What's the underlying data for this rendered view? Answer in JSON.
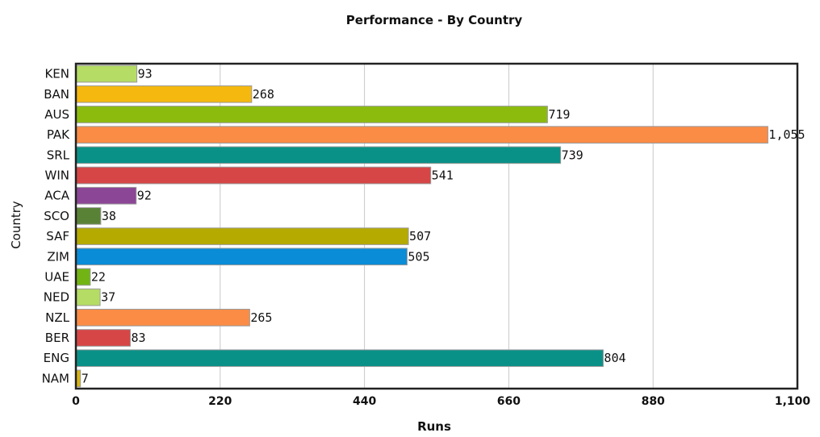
{
  "chart_data": {
    "type": "bar",
    "orientation": "horizontal",
    "title": "Performance - By Country",
    "xlabel": "Runs",
    "ylabel": "Country",
    "xlim": [
      0,
      1100
    ],
    "x_ticks": [
      0,
      220,
      440,
      660,
      880,
      1100
    ],
    "x_tick_labels": [
      "0",
      "220",
      "440",
      "660",
      "880",
      "1,100"
    ],
    "grid": true,
    "legend": "none",
    "categories": [
      "KEN",
      "BAN",
      "AUS",
      "PAK",
      "SRL",
      "WIN",
      "ACA",
      "SCO",
      "SAF",
      "ZIM",
      "UAE",
      "NED",
      "NZL",
      "BER",
      "ENG",
      "NAM"
    ],
    "values": [
      93,
      268,
      719,
      1055,
      739,
      541,
      92,
      38,
      507,
      505,
      22,
      37,
      265,
      83,
      804,
      7
    ],
    "value_labels": [
      "93",
      "268",
      "719",
      "1,055",
      "739",
      "541",
      "92",
      "38",
      "507",
      "505",
      "22",
      "37",
      "265",
      "83",
      "804",
      "7"
    ],
    "colors": [
      "#b5dc64",
      "#f5b80f",
      "#8cbb0e",
      "#fa8c46",
      "#0a9187",
      "#d64646",
      "#8c4696",
      "#5a8237",
      "#b4aa00",
      "#0a8cd7",
      "#72b414",
      "#b5dc64",
      "#fa8c46",
      "#d64646",
      "#0a9187",
      "#d7b414"
    ]
  }
}
